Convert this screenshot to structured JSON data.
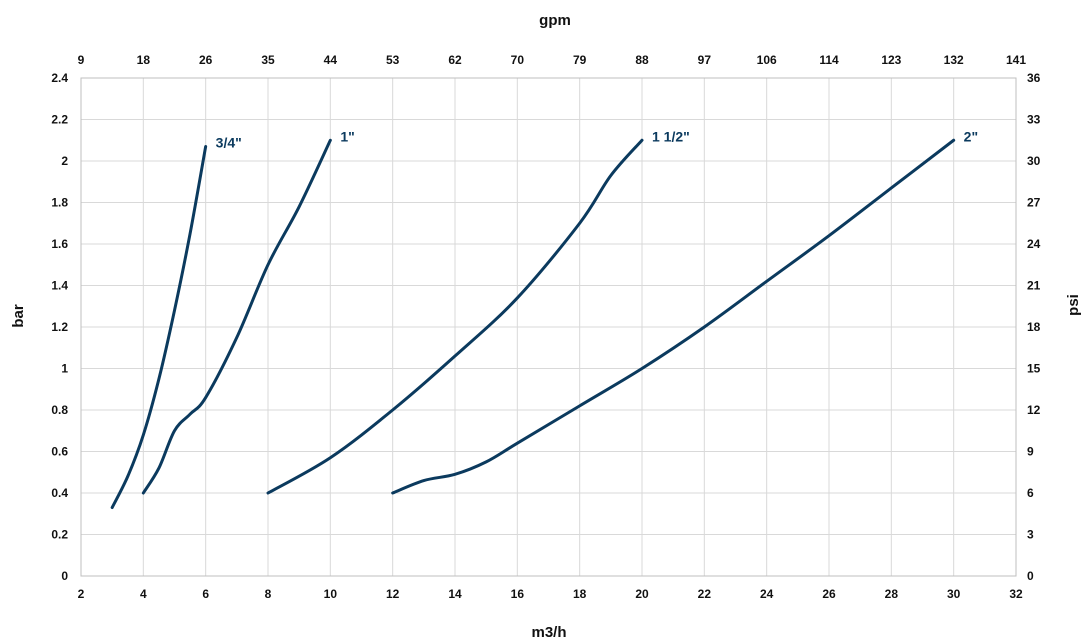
{
  "chart_data": {
    "type": "line",
    "xlabel": "m3/h",
    "ylabel": "bar",
    "x2label": "gpm",
    "y2label": "psi",
    "xlim": [
      2,
      32
    ],
    "ylim": [
      0,
      2.4
    ],
    "x_ticks": [
      "2",
      "4",
      "6",
      "8",
      "10",
      "12",
      "14",
      "16",
      "18",
      "20",
      "22",
      "24",
      "26",
      "28",
      "30",
      "32"
    ],
    "y_ticks": [
      "0",
      "0.2",
      "0.4",
      "0.6",
      "0.8",
      "1",
      "1.2",
      "1.4",
      "1.6",
      "1.8",
      "2",
      "2.2",
      "2.4"
    ],
    "x2_ticks": [
      "9",
      "18",
      "26",
      "35",
      "44",
      "53",
      "62",
      "70",
      "79",
      "88",
      "97",
      "106",
      "114",
      "123",
      "132",
      "141"
    ],
    "y2_ticks": [
      "0",
      "3",
      "6",
      "9",
      "12",
      "15",
      "18",
      "21",
      "24",
      "27",
      "30",
      "33",
      "36"
    ],
    "grid": "vertical",
    "line_color": "#0b3a5e",
    "series": [
      {
        "name": "3/4\"",
        "x": [
          3.0,
          3.5,
          4.0,
          4.5,
          5.0,
          5.5,
          6.0
        ],
        "y": [
          0.33,
          0.48,
          0.68,
          0.95,
          1.28,
          1.65,
          2.07
        ]
      },
      {
        "name": "1\"",
        "x": [
          4.0,
          4.5,
          5.0,
          5.5,
          6.0,
          7.0,
          8.0,
          9.0,
          10.0
        ],
        "y": [
          0.4,
          0.52,
          0.7,
          0.78,
          0.86,
          1.15,
          1.5,
          1.78,
          2.1
        ]
      },
      {
        "name": "1 1/2\"",
        "x": [
          8,
          10,
          12,
          14,
          16,
          18,
          19,
          20
        ],
        "y": [
          0.4,
          0.57,
          0.8,
          1.06,
          1.34,
          1.7,
          1.93,
          2.1
        ]
      },
      {
        "name": "2\"",
        "x": [
          12,
          13,
          14,
          15,
          16,
          18,
          20,
          22,
          24,
          26,
          28,
          30
        ],
        "y": [
          0.4,
          0.46,
          0.49,
          0.55,
          0.64,
          0.82,
          1.0,
          1.2,
          1.42,
          1.64,
          1.87,
          2.1
        ]
      }
    ]
  }
}
